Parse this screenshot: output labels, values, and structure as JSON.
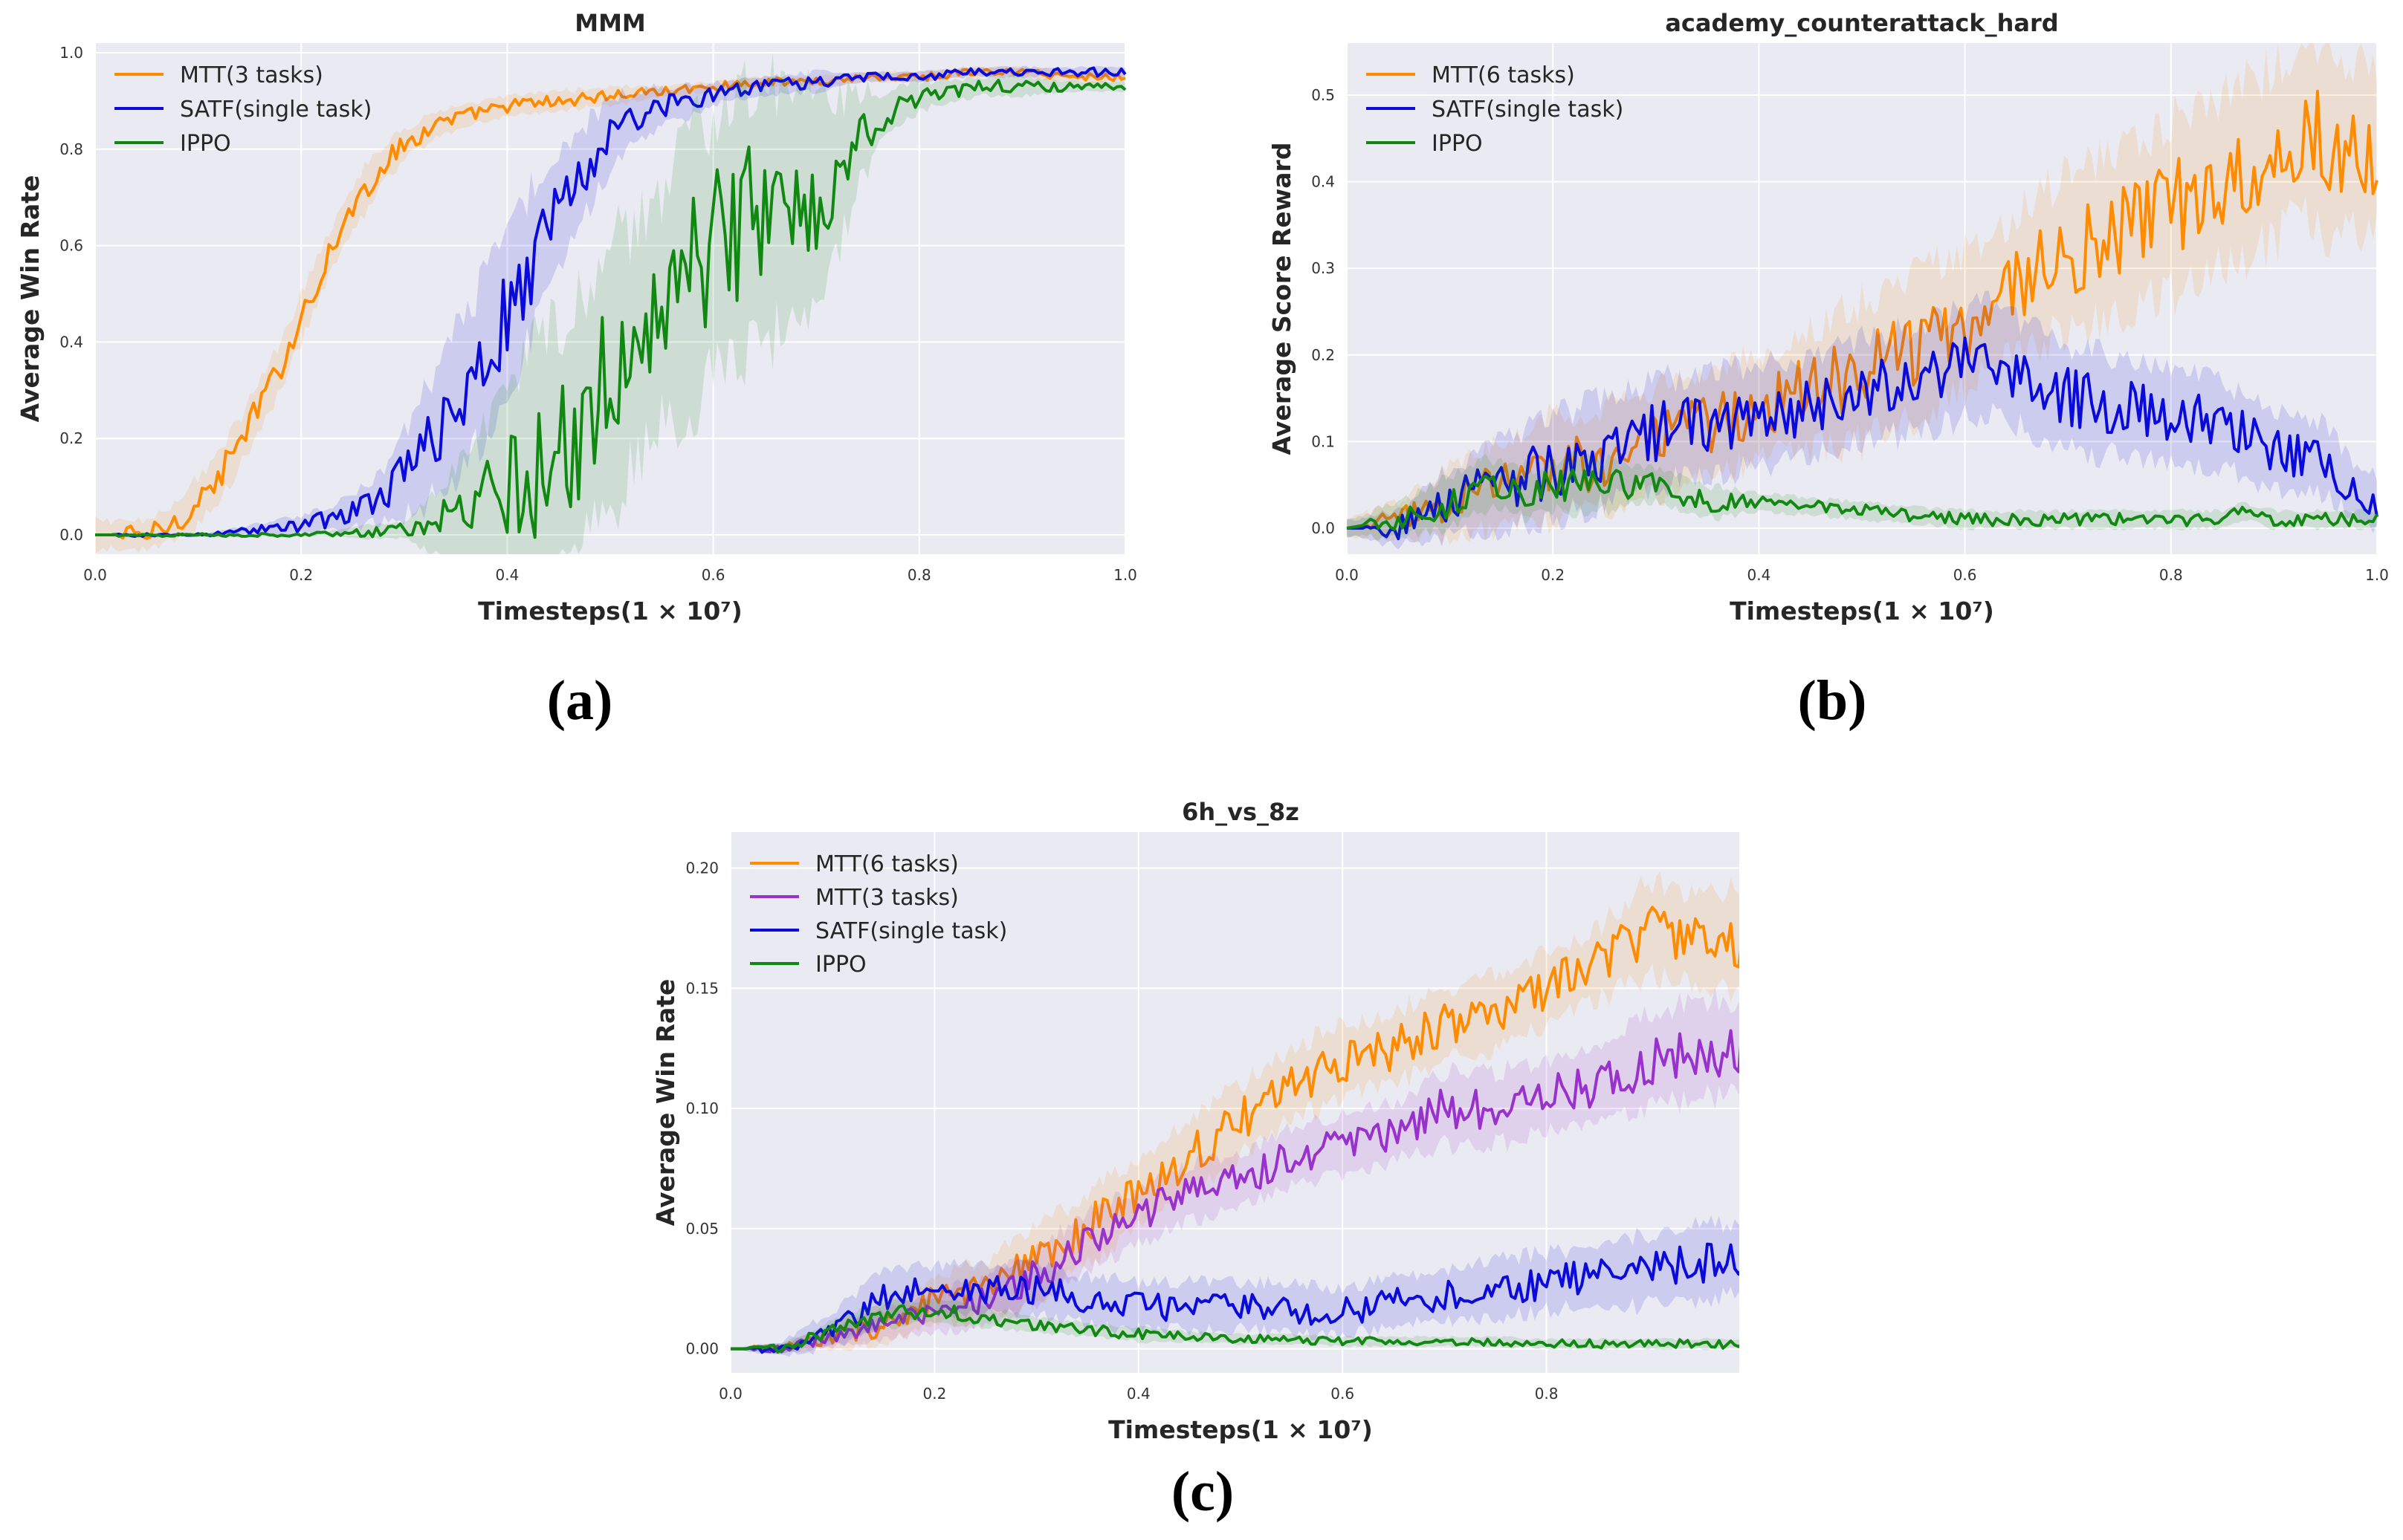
{
  "chart_data": [
    {
      "type": "line",
      "title": "MMM",
      "xlabel": "Timesteps",
      "xlabel_math": "(1 × 10⁷)",
      "ylabel": "Average Win Rate",
      "xlim": [
        0,
        1.0
      ],
      "ylim": [
        -0.04,
        1.02
      ],
      "xticks": [
        "0.0",
        "0.2",
        "0.4",
        "0.6",
        "0.8",
        "1.0"
      ],
      "xtick_values": [
        0,
        0.2,
        0.4,
        0.6,
        0.8,
        1.0
      ],
      "yticks": [
        "0.0",
        "0.2",
        "0.4",
        "0.6",
        "0.8",
        "1.0"
      ],
      "ytick_values": [
        0,
        0.2,
        0.4,
        0.6,
        0.8,
        1.0
      ],
      "legend": "top-left",
      "caption": "(a)",
      "series": [
        {
          "name": "MTT(3 tasks)",
          "color": "#ff8c00",
          "x": [
            0,
            0.05,
            0.08,
            0.1,
            0.12,
            0.14,
            0.16,
            0.18,
            0.2,
            0.22,
            0.24,
            0.26,
            0.28,
            0.3,
            0.33,
            0.36,
            0.4,
            0.45,
            0.5,
            0.55,
            0.6,
            0.65,
            0.7,
            0.75,
            0.8,
            0.85,
            0.9,
            0.95,
            1.0
          ],
          "y": [
            0,
            0.0,
            0.03,
            0.07,
            0.12,
            0.19,
            0.27,
            0.35,
            0.45,
            0.55,
            0.64,
            0.71,
            0.77,
            0.81,
            0.85,
            0.87,
            0.89,
            0.9,
            0.91,
            0.92,
            0.93,
            0.94,
            0.94,
            0.95,
            0.95,
            0.96,
            0.96,
            0.95,
            0.95
          ],
          "band": [
            0.03,
            0.03,
            0.04,
            0.05,
            0.05,
            0.05,
            0.05,
            0.05,
            0.05,
            0.05,
            0.05,
            0.05,
            0.04,
            0.03,
            0.03,
            0.02,
            0.02,
            0.02,
            0.02,
            0.01,
            0.01,
            0.01,
            0.01,
            0.01,
            0.01,
            0.01,
            0.01,
            0.01,
            0.01
          ]
        },
        {
          "name": "SATF(single task)",
          "color": "#0a0adb",
          "x": [
            0,
            0.1,
            0.15,
            0.2,
            0.24,
            0.28,
            0.31,
            0.34,
            0.37,
            0.39,
            0.41,
            0.43,
            0.45,
            0.47,
            0.49,
            0.51,
            0.53,
            0.55,
            0.58,
            0.61,
            0.65,
            0.7,
            0.75,
            0.8,
            0.85,
            0.9,
            0.95,
            1.0
          ],
          "y": [
            0,
            0.0,
            0.01,
            0.02,
            0.04,
            0.08,
            0.15,
            0.24,
            0.34,
            0.42,
            0.5,
            0.6,
            0.67,
            0.74,
            0.8,
            0.85,
            0.87,
            0.89,
            0.9,
            0.92,
            0.93,
            0.94,
            0.95,
            0.95,
            0.96,
            0.96,
            0.96,
            0.96
          ],
          "band": [
            0,
            0.0,
            0.01,
            0.02,
            0.03,
            0.05,
            0.1,
            0.14,
            0.16,
            0.17,
            0.16,
            0.15,
            0.12,
            0.1,
            0.08,
            0.06,
            0.05,
            0.04,
            0.03,
            0.02,
            0.02,
            0.02,
            0.01,
            0.01,
            0.01,
            0.01,
            0.01,
            0.01
          ]
        },
        {
          "name": "IPPO",
          "color": "#118811",
          "x": [
            0,
            0.2,
            0.3,
            0.35,
            0.4,
            0.43,
            0.45,
            0.47,
            0.49,
            0.52,
            0.55,
            0.58,
            0.61,
            0.64,
            0.67,
            0.7,
            0.72,
            0.74,
            0.76,
            0.78,
            0.8,
            0.83,
            0.86,
            0.9,
            0.95,
            1.0
          ],
          "y": [
            0,
            0.0,
            0.01,
            0.03,
            0.08,
            0.14,
            0.16,
            0.22,
            0.3,
            0.38,
            0.47,
            0.55,
            0.62,
            0.66,
            0.68,
            0.7,
            0.74,
            0.82,
            0.86,
            0.89,
            0.91,
            0.92,
            0.93,
            0.93,
            0.93,
            0.93
          ],
          "band": [
            0,
            0.0,
            0.02,
            0.1,
            0.2,
            0.26,
            0.28,
            0.27,
            0.26,
            0.26,
            0.25,
            0.27,
            0.28,
            0.28,
            0.24,
            0.2,
            0.16,
            0.1,
            0.06,
            0.04,
            0.03,
            0.02,
            0.02,
            0.02,
            0.01,
            0.01
          ]
        }
      ]
    },
    {
      "type": "line",
      "title": "academy_counterattack_hard",
      "xlabel": "Timesteps",
      "xlabel_math": "(1 × 10⁷)",
      "ylabel": "Average Score Reward",
      "xlim": [
        0,
        1.0
      ],
      "ylim": [
        -0.03,
        0.56
      ],
      "xticks": [
        "0.0",
        "0.2",
        "0.4",
        "0.6",
        "0.8",
        "1.0"
      ],
      "xtick_values": [
        0,
        0.2,
        0.4,
        0.6,
        0.8,
        1.0
      ],
      "yticks": [
        "0.0",
        "0.1",
        "0.2",
        "0.3",
        "0.4",
        "0.5"
      ],
      "ytick_values": [
        0,
        0.1,
        0.2,
        0.3,
        0.4,
        0.5
      ],
      "legend": "top-left",
      "caption": "(b)",
      "series": [
        {
          "name": "MTT(6 tasks)",
          "color": "#ff8c00",
          "x": [
            0,
            0.05,
            0.1,
            0.15,
            0.2,
            0.25,
            0.3,
            0.35,
            0.4,
            0.45,
            0.5,
            0.55,
            0.6,
            0.65,
            0.7,
            0.75,
            0.8,
            0.85,
            0.9,
            0.93,
            0.95,
            1.0
          ],
          "y": [
            0,
            0.01,
            0.03,
            0.05,
            0.07,
            0.08,
            0.1,
            0.12,
            0.14,
            0.16,
            0.18,
            0.21,
            0.24,
            0.28,
            0.32,
            0.34,
            0.37,
            0.4,
            0.43,
            0.47,
            0.44,
            0.44
          ],
          "band": [
            0.01,
            0.02,
            0.04,
            0.05,
            0.06,
            0.06,
            0.06,
            0.06,
            0.06,
            0.07,
            0.08,
            0.08,
            0.08,
            0.08,
            0.09,
            0.09,
            0.1,
            0.1,
            0.1,
            0.1,
            0.1,
            0.1
          ]
        },
        {
          "name": "SATF(single task)",
          "color": "#0a0adb",
          "x": [
            0,
            0.05,
            0.1,
            0.15,
            0.2,
            0.25,
            0.3,
            0.35,
            0.4,
            0.45,
            0.5,
            0.55,
            0.6,
            0.63,
            0.65,
            0.7,
            0.75,
            0.8,
            0.85,
            0.88,
            0.9,
            0.95,
            0.98,
            1.0
          ],
          "y": [
            0,
            0.0,
            0.03,
            0.05,
            0.07,
            0.09,
            0.11,
            0.12,
            0.13,
            0.14,
            0.16,
            0.17,
            0.19,
            0.2,
            0.18,
            0.15,
            0.14,
            0.13,
            0.12,
            0.1,
            0.09,
            0.08,
            0.04,
            0.03
          ],
          "band": [
            0.01,
            0.02,
            0.04,
            0.05,
            0.06,
            0.06,
            0.06,
            0.06,
            0.06,
            0.06,
            0.06,
            0.06,
            0.06,
            0.06,
            0.06,
            0.06,
            0.06,
            0.05,
            0.05,
            0.05,
            0.05,
            0.04,
            0.03,
            0.03
          ]
        },
        {
          "name": "IPPO",
          "color": "#118811",
          "x": [
            0,
            0.05,
            0.1,
            0.13,
            0.15,
            0.18,
            0.2,
            0.25,
            0.3,
            0.35,
            0.4,
            0.5,
            0.6,
            0.7,
            0.8,
            0.85,
            0.87,
            0.9,
            1.0
          ],
          "y": [
            0,
            0.01,
            0.03,
            0.05,
            0.05,
            0.04,
            0.05,
            0.05,
            0.05,
            0.03,
            0.03,
            0.02,
            0.01,
            0.01,
            0.01,
            0.01,
            0.02,
            0.01,
            0.01
          ],
          "band": [
            0.01,
            0.02,
            0.03,
            0.03,
            0.03,
            0.03,
            0.03,
            0.03,
            0.02,
            0.02,
            0.01,
            0.01,
            0.01,
            0.01,
            0.01,
            0.01,
            0.01,
            0.01,
            0.01
          ]
        }
      ]
    },
    {
      "type": "line",
      "title": "6h_vs_8z",
      "xlabel": "Timesteps",
      "xlabel_math": "(1 × 10⁷)",
      "ylabel": "Average Win Rate",
      "xlim": [
        0,
        1.0
      ],
      "ylim": [
        -0.01,
        0.215
      ],
      "xticks": [
        "0.0",
        "0.2",
        "0.4",
        "0.6",
        "0.8",
        "1.0"
      ],
      "xtick_values": [
        0,
        0.2,
        0.4,
        0.6,
        0.8,
        1.0
      ],
      "yticks": [
        "0.00",
        "0.05",
        "0.10",
        "0.15",
        "0.20"
      ],
      "ytick_values": [
        0,
        0.05,
        0.1,
        0.15,
        0.2
      ],
      "legend": "top-left",
      "caption": "(c)",
      "series": [
        {
          "name": "MTT(6 tasks)",
          "color": "#ff8c00",
          "x": [
            0,
            0.05,
            0.1,
            0.15,
            0.2,
            0.25,
            0.3,
            0.35,
            0.4,
            0.45,
            0.5,
            0.55,
            0.6,
            0.65,
            0.7,
            0.75,
            0.8,
            0.85,
            0.9,
            0.95,
            1.0
          ],
          "y": [
            0,
            0.0,
            0.005,
            0.01,
            0.02,
            0.025,
            0.035,
            0.05,
            0.065,
            0.08,
            0.095,
            0.11,
            0.12,
            0.125,
            0.135,
            0.14,
            0.15,
            0.16,
            0.175,
            0.17,
            0.17
          ],
          "band": [
            0,
            0.002,
            0.005,
            0.008,
            0.01,
            0.012,
            0.015,
            0.015,
            0.015,
            0.015,
            0.015,
            0.015,
            0.015,
            0.015,
            0.015,
            0.015,
            0.015,
            0.015,
            0.02,
            0.02,
            0.02
          ]
        },
        {
          "name": "MTT(3 tasks)",
          "color": "#9932cc",
          "x": [
            0,
            0.05,
            0.1,
            0.15,
            0.2,
            0.25,
            0.3,
            0.35,
            0.4,
            0.45,
            0.5,
            0.55,
            0.6,
            0.65,
            0.7,
            0.75,
            0.8,
            0.85,
            0.9,
            0.95,
            1.0
          ],
          "y": [
            0,
            0.0,
            0.005,
            0.01,
            0.015,
            0.02,
            0.03,
            0.045,
            0.055,
            0.065,
            0.07,
            0.08,
            0.085,
            0.09,
            0.1,
            0.1,
            0.105,
            0.11,
            0.12,
            0.125,
            0.125
          ],
          "band": [
            0,
            0.002,
            0.004,
            0.006,
            0.008,
            0.01,
            0.012,
            0.012,
            0.012,
            0.012,
            0.012,
            0.012,
            0.012,
            0.012,
            0.015,
            0.015,
            0.015,
            0.015,
            0.02,
            0.02,
            0.02
          ]
        },
        {
          "name": "SATF(single task)",
          "color": "#0a0adb",
          "x": [
            0,
            0.05,
            0.1,
            0.15,
            0.2,
            0.25,
            0.3,
            0.35,
            0.4,
            0.45,
            0.5,
            0.55,
            0.6,
            0.65,
            0.7,
            0.75,
            0.8,
            0.85,
            0.9,
            0.95,
            1.0
          ],
          "y": [
            0,
            0.0,
            0.008,
            0.022,
            0.025,
            0.025,
            0.025,
            0.02,
            0.018,
            0.018,
            0.018,
            0.017,
            0.015,
            0.02,
            0.022,
            0.025,
            0.028,
            0.03,
            0.033,
            0.036,
            0.038
          ],
          "band": [
            0,
            0.003,
            0.008,
            0.01,
            0.01,
            0.01,
            0.01,
            0.01,
            0.01,
            0.01,
            0.01,
            0.01,
            0.01,
            0.01,
            0.01,
            0.012,
            0.012,
            0.012,
            0.015,
            0.015,
            0.015
          ]
        },
        {
          "name": "IPPO",
          "color": "#118811",
          "x": [
            0,
            0.05,
            0.1,
            0.15,
            0.2,
            0.25,
            0.3,
            0.35,
            0.4,
            0.45,
            0.5,
            0.55,
            0.6,
            0.65,
            0.7,
            0.75,
            0.8,
            0.85,
            0.9,
            0.95,
            1.0
          ],
          "y": [
            0,
            0.0,
            0.008,
            0.014,
            0.016,
            0.013,
            0.01,
            0.008,
            0.006,
            0.005,
            0.004,
            0.004,
            0.003,
            0.003,
            0.003,
            0.003,
            0.002,
            0.002,
            0.002,
            0.002,
            0.002
          ],
          "band": [
            0,
            0.002,
            0.004,
            0.005,
            0.005,
            0.004,
            0.003,
            0.003,
            0.003,
            0.002,
            0.002,
            0.002,
            0.002,
            0.002,
            0.002,
            0.002,
            0.002,
            0.002,
            0.002,
            0.002,
            0.002
          ]
        }
      ]
    }
  ]
}
